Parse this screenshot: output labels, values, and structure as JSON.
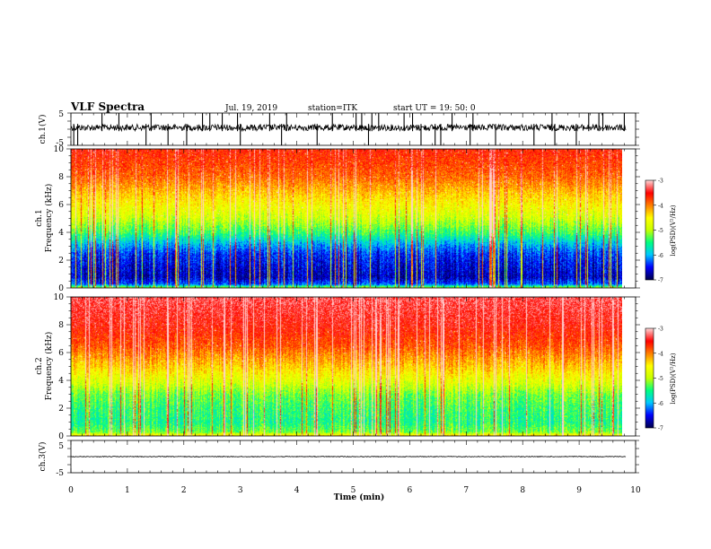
{
  "header": {
    "title": "VLF Spectra",
    "date": "Jul. 19, 2019",
    "station": "station=ITK",
    "start": "start UT =   19: 50: 0"
  },
  "colorbar": {
    "label": "log(PSD)(V²/Hz)",
    "ticks": [
      -3,
      -4,
      -5,
      -6,
      -7
    ],
    "colors": [
      "#000050",
      "#0000ff",
      "#00c8ff",
      "#00ff80",
      "#c8ff00",
      "#ffff00",
      "#ff8000",
      "#ff0000",
      "#ffd0d0"
    ]
  },
  "chart_data": [
    {
      "type": "line",
      "panel": "ch1-waveform",
      "ylabel": "ch.1(V)",
      "ylim": [
        -5,
        5
      ],
      "yticks": [
        5,
        -5
      ],
      "xlim": [
        0,
        10
      ],
      "baseline": 0.5,
      "noise": 1.0,
      "spike_times": [
        0.05,
        0.12,
        0.55,
        0.85,
        1.33,
        1.42,
        1.72,
        2.05,
        2.33,
        2.46,
        2.68,
        2.95,
        3.0,
        3.52,
        3.73,
        3.82,
        4.36,
        4.63,
        5.05,
        5.15,
        5.27,
        5.33,
        5.45,
        5.9,
        6.05,
        6.2,
        6.45,
        6.55,
        6.75,
        7.07,
        7.12,
        7.52,
        8.2,
        8.52,
        8.57,
        8.95,
        9.17,
        9.35,
        9.42,
        9.8
      ]
    },
    {
      "type": "heatmap",
      "panel": "ch1-spectrogram",
      "ylabel": "ch.1",
      "ylabel2": "Frequency (kHz)",
      "xlim": [
        0,
        9.85
      ],
      "ylim": [
        0,
        10
      ],
      "yticks": [
        0,
        2,
        4,
        6,
        8,
        10
      ],
      "zlim": [
        -7,
        -3
      ],
      "profile_freq_khz": [
        0,
        0.3,
        0.8,
        1.5,
        2.5,
        3.2,
        4.0,
        5.0,
        6.5,
        8.0,
        10.0
      ],
      "profile_log_psd": [
        -4.8,
        -6.3,
        -6.7,
        -6.6,
        -6.4,
        -6.0,
        -5.4,
        -4.9,
        -4.4,
        -3.9,
        -3.6
      ]
    },
    {
      "type": "heatmap",
      "panel": "ch2-spectrogram",
      "ylabel": "ch.2",
      "ylabel2": "Frequency (kHz)",
      "xlim": [
        0,
        9.85
      ],
      "ylim": [
        0,
        10
      ],
      "yticks": [
        0,
        2,
        4,
        6,
        8,
        10
      ],
      "zlim": [
        -7,
        -3
      ],
      "profile_freq_khz": [
        0,
        0.3,
        1.0,
        2.0,
        3.0,
        3.8,
        5.0,
        6.5,
        8.0,
        10.0
      ],
      "profile_log_psd": [
        -4.2,
        -5.2,
        -5.5,
        -5.4,
        -5.2,
        -4.8,
        -4.3,
        -3.8,
        -3.5,
        -3.3
      ]
    },
    {
      "type": "line",
      "panel": "ch3-waveform",
      "ylabel": "ch.3(V)",
      "ylim": [
        -5,
        5
      ],
      "yticks": [
        5,
        -5
      ],
      "xlim": [
        0,
        10
      ],
      "baseline": 0,
      "noise": 0.1,
      "spike_times": []
    }
  ],
  "xaxis": {
    "label": "Time (min)",
    "ticks": [
      0,
      1,
      2,
      3,
      4,
      5,
      6,
      7,
      8,
      9,
      10
    ]
  }
}
